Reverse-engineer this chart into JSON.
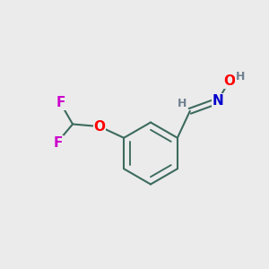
{
  "background_color": "#ebebeb",
  "bond_color": "#3d6b5e",
  "bond_width": 1.5,
  "atom_colors": {
    "O": "#ff0000",
    "N": "#0000cc",
    "F": "#cc00cc",
    "H": "#708090"
  },
  "font_size_atoms": 11,
  "font_size_H": 9,
  "figsize": [
    3.0,
    3.0
  ],
  "dpi": 100
}
